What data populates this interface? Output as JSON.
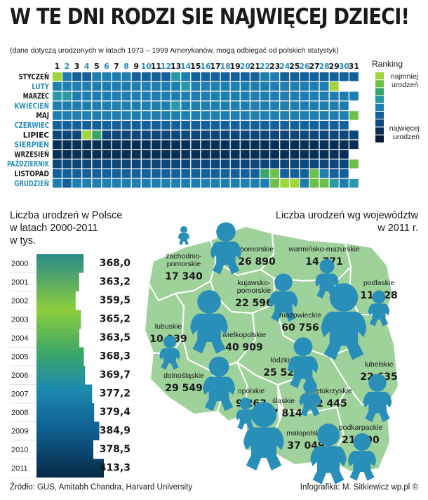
{
  "page": {
    "title": "W TE DNI RODZI SIE NAJWIĘCEJ DZIECI!",
    "subtitle": "(dane dotyczą urodzonych w latach 1973 – 1999 Amerykanów, mogą odbiegać od polskich statystyk)",
    "source": "Źródło: GUS, Amitabh Chandra, Harvard University",
    "credit": "Infografika: M. Sitkiewicz wp.pl ©"
  },
  "colors": {
    "ranking_scale": [
      "#9fd63a",
      "#6cc04a",
      "#3aa56a",
      "#2a98a5",
      "#1f7eb0",
      "#14609a",
      "#0d4678",
      "#082f55",
      "#041c36"
    ],
    "month_label_light": "#2a8fb8",
    "month_label_dark": "#1a1a1a",
    "map_fill": "#9fd19a",
    "map_border": "#ffffff",
    "baby_icon": "#2a8fb8"
  },
  "chart_data": [
    {
      "type": "heatmap",
      "title": "Ranking",
      "legend": {
        "top_label": "najmniej urodzeń",
        "bottom_label": "najwięcej urodzeń",
        "placement": "right"
      },
      "days": [
        "1",
        "2",
        "3",
        "4",
        "5",
        "6",
        "7",
        "8",
        "9",
        "10",
        "11",
        "12",
        "13",
        "14",
        "15",
        "16",
        "17",
        "18",
        "19",
        "20",
        "21",
        "22",
        "23",
        "24",
        "25",
        "26",
        "27",
        "28",
        "29",
        "30",
        "31"
      ],
      "months": [
        "STYCZEŃ",
        "LUTY",
        "MARZEC",
        "KWIECIEŃ",
        "MAJ",
        "CZERWIEC",
        "LIPIEC",
        "SIERPIEŃ",
        "WRZESIEŃ",
        "PAŹDZIERNIK",
        "LISTOPAD",
        "GRUDZIEŃ"
      ],
      "values": [
        [
          0,
          4,
          5,
          5,
          4,
          4,
          4,
          4,
          5,
          5,
          5,
          5,
          3,
          4,
          5,
          5,
          5,
          5,
          5,
          5,
          5,
          4,
          4,
          5,
          5,
          5,
          5,
          5,
          5,
          5,
          5
        ],
        [
          4,
          4,
          4,
          4,
          4,
          4,
          4,
          4,
          4,
          4,
          4,
          4,
          4,
          3,
          4,
          4,
          4,
          4,
          4,
          4,
          4,
          4,
          4,
          4,
          4,
          4,
          4,
          4,
          0,
          null,
          null
        ],
        [
          3,
          3,
          4,
          4,
          4,
          4,
          4,
          4,
          4,
          4,
          4,
          4,
          4,
          4,
          4,
          4,
          4,
          4,
          4,
          4,
          4,
          4,
          4,
          4,
          4,
          4,
          4,
          4,
          4,
          4,
          4
        ],
        [
          4,
          4,
          4,
          4,
          4,
          4,
          4,
          4,
          4,
          4,
          4,
          4,
          3,
          4,
          4,
          4,
          4,
          4,
          4,
          4,
          4,
          4,
          4,
          4,
          4,
          4,
          4,
          4,
          4,
          4,
          null
        ],
        [
          4,
          4,
          4,
          4,
          4,
          4,
          4,
          4,
          4,
          4,
          4,
          4,
          4,
          4,
          4,
          4,
          4,
          4,
          4,
          4,
          4,
          4,
          4,
          4,
          4,
          4,
          4,
          4,
          4,
          4,
          1
        ],
        [
          5,
          5,
          5,
          5,
          5,
          5,
          5,
          5,
          5,
          5,
          5,
          5,
          5,
          5,
          5,
          5,
          5,
          5,
          5,
          5,
          5,
          5,
          5,
          5,
          5,
          5,
          5,
          5,
          5,
          5,
          null
        ],
        [
          6,
          6,
          6,
          0,
          2,
          6,
          6,
          6,
          6,
          6,
          6,
          6,
          6,
          6,
          6,
          6,
          6,
          6,
          6,
          6,
          6,
          6,
          6,
          6,
          6,
          6,
          6,
          6,
          6,
          6,
          6
        ],
        [
          7,
          7,
          7,
          7,
          7,
          7,
          7,
          7,
          7,
          7,
          7,
          7,
          7,
          7,
          7,
          7,
          7,
          7,
          7,
          7,
          7,
          7,
          7,
          7,
          7,
          7,
          7,
          7,
          7,
          7,
          7
        ],
        [
          7,
          7,
          7,
          7,
          7,
          7,
          7,
          7,
          7,
          7,
          7,
          7,
          7,
          7,
          7,
          7,
          7,
          7,
          7,
          7,
          7,
          7,
          7,
          7,
          7,
          7,
          7,
          7,
          7,
          7,
          null
        ],
        [
          6,
          6,
          6,
          6,
          6,
          6,
          6,
          6,
          6,
          6,
          6,
          6,
          6,
          6,
          6,
          6,
          6,
          6,
          6,
          6,
          6,
          6,
          6,
          6,
          6,
          6,
          6,
          6,
          6,
          6,
          1
        ],
        [
          5,
          5,
          5,
          5,
          5,
          5,
          5,
          5,
          5,
          5,
          5,
          5,
          5,
          5,
          5,
          5,
          5,
          5,
          5,
          5,
          5,
          2,
          1,
          5,
          5,
          5,
          1,
          4,
          5,
          5,
          null
        ],
        [
          4,
          5,
          4,
          4,
          4,
          4,
          4,
          4,
          4,
          4,
          4,
          4,
          4,
          4,
          4,
          4,
          4,
          4,
          4,
          4,
          4,
          4,
          1,
          0,
          0,
          4,
          1,
          1,
          3,
          4,
          3
        ]
      ]
    },
    {
      "type": "bar",
      "title": "Liczba urodzeń w Polsce w latach 2000-2011 w tys.",
      "categories": [
        "2000",
        "2001",
        "2002",
        "2003",
        "2004",
        "2005",
        "2006",
        "2007",
        "2008",
        "2009",
        "2010",
        "2011"
      ],
      "values": [
        368.0,
        363.2,
        359.5,
        365.2,
        363.5,
        368.3,
        369.7,
        377.2,
        379.4,
        384.9,
        378.5,
        413.3
      ],
      "value_labels": [
        "368,0",
        "363,2",
        "359,5",
        "365,2",
        "363,5",
        "368,3",
        "369,7",
        "377,2",
        "379,4",
        "384,9",
        "378,5",
        "413,3"
      ]
    },
    {
      "type": "map",
      "title": "Liczba urodzeń wg województw w 2011 r.",
      "regions": [
        {
          "name": "pomorskie",
          "value": 26890,
          "label": "26 890"
        },
        {
          "name": "warmińsko-mazurskie",
          "value": 14771,
          "label": "14 771"
        },
        {
          "name": "zachodnio-pomorskie",
          "value": 17340,
          "label": "17 340"
        },
        {
          "name": "podlaskie",
          "value": 11928,
          "label": "11 928"
        },
        {
          "name": "kujawsko-pomorskie",
          "value": 22596,
          "label": "22 596"
        },
        {
          "name": "mazowieckie",
          "value": 60756,
          "label": "60 756"
        },
        {
          "name": "lubuskie",
          "value": 10939,
          "label": "10 939"
        },
        {
          "name": "wielkopolskie",
          "value": 40909,
          "label": "40 909"
        },
        {
          "name": "łódzkie",
          "value": 25526,
          "label": "25 526"
        },
        {
          "name": "lubelskie",
          "value": 22635,
          "label": "22 635"
        },
        {
          "name": "dolnośląskie",
          "value": 29549,
          "label": "29 549"
        },
        {
          "name": "opolskie",
          "value": 9263,
          "label": "9 263"
        },
        {
          "name": "śląskie",
          "value": 47814,
          "label": "47 814"
        },
        {
          "name": "świętokrzyskie",
          "value": 12445,
          "label": "12 445"
        },
        {
          "name": "małopolskie",
          "value": 37049,
          "label": "37 049"
        },
        {
          "name": "podkarpackie",
          "value": 21990,
          "label": "21 990"
        }
      ]
    }
  ]
}
